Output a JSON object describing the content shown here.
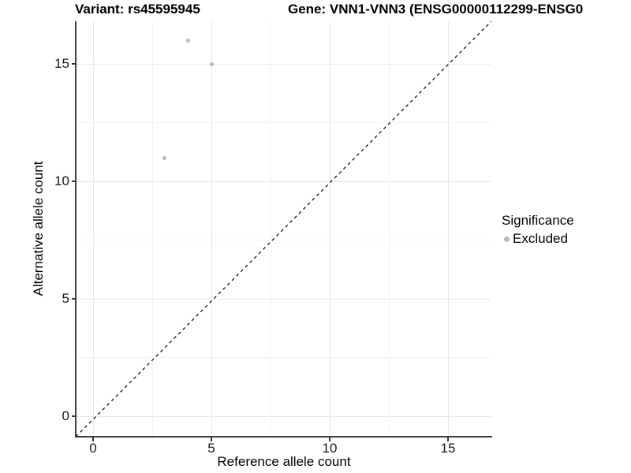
{
  "titles": {
    "variant": "Variant: rs45595945",
    "gene": "Gene: VNN1-VNN3 (ENSG00000112299-ENSG0"
  },
  "axes": {
    "x": {
      "label": "Reference allele count",
      "ticks": [
        0,
        5,
        10,
        15
      ]
    },
    "y": {
      "label": "Alternative allele count",
      "ticks": [
        0,
        5,
        10,
        15
      ]
    }
  },
  "legend": {
    "title": "Significance",
    "items": [
      {
        "label": "Excluded",
        "color": "#b9b9b9"
      }
    ]
  },
  "colors": {
    "point": "#b9b9b9",
    "grid_major": "#e7e7e7",
    "grid_minor": "#f3f3f3",
    "axis_line": "#404040",
    "text": "#000000",
    "identity_line": "#000000"
  },
  "chart_data": {
    "type": "scatter",
    "title": "Variant: rs45595945 | Gene: VNN1-VNN3 (ENSG00000112299-ENSG0...)",
    "xlabel": "Reference allele count",
    "ylabel": "Alternative allele count",
    "xlim": [
      -0.8,
      16.8
    ],
    "ylim": [
      -0.8,
      16.8
    ],
    "x_ticks": [
      0,
      5,
      10,
      15
    ],
    "y_ticks": [
      0,
      5,
      10,
      15
    ],
    "minor_ticks": [
      2.5,
      7.5,
      12.5
    ],
    "grid": "major+minor",
    "legend_position": "right",
    "reference_line": {
      "type": "identity y=x",
      "style": "dashed",
      "color": "#000000"
    },
    "series": [
      {
        "name": "Excluded",
        "color": "#b9b9b9",
        "points": [
          {
            "x": 4,
            "y": 16
          },
          {
            "x": 5,
            "y": 15
          },
          {
            "x": 3,
            "y": 11
          }
        ]
      }
    ]
  }
}
